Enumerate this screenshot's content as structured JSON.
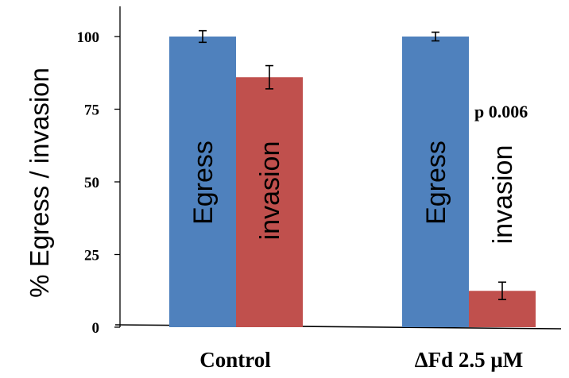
{
  "chart_data": {
    "type": "bar",
    "ylabel": "% Egress / invasion",
    "ylim": [
      0,
      110
    ],
    "yticks": [
      0,
      25,
      50,
      75,
      100
    ],
    "categories": [
      "Control",
      "ΔFd 2.5 μM"
    ],
    "series": [
      {
        "color": "#4F81BD",
        "values": [
          100,
          100
        ],
        "errors": [
          2,
          1.5
        ],
        "bar_labels": [
          "Egress",
          "Egress"
        ]
      },
      {
        "color": "#C0504D",
        "values": [
          86,
          12.5
        ],
        "errors": [
          4,
          3
        ],
        "bar_labels": [
          "invasion",
          "invasion"
        ]
      }
    ],
    "annotations": [
      {
        "text": "p  0.006",
        "category_index": 1
      }
    ],
    "grid": false,
    "legend": "none"
  }
}
